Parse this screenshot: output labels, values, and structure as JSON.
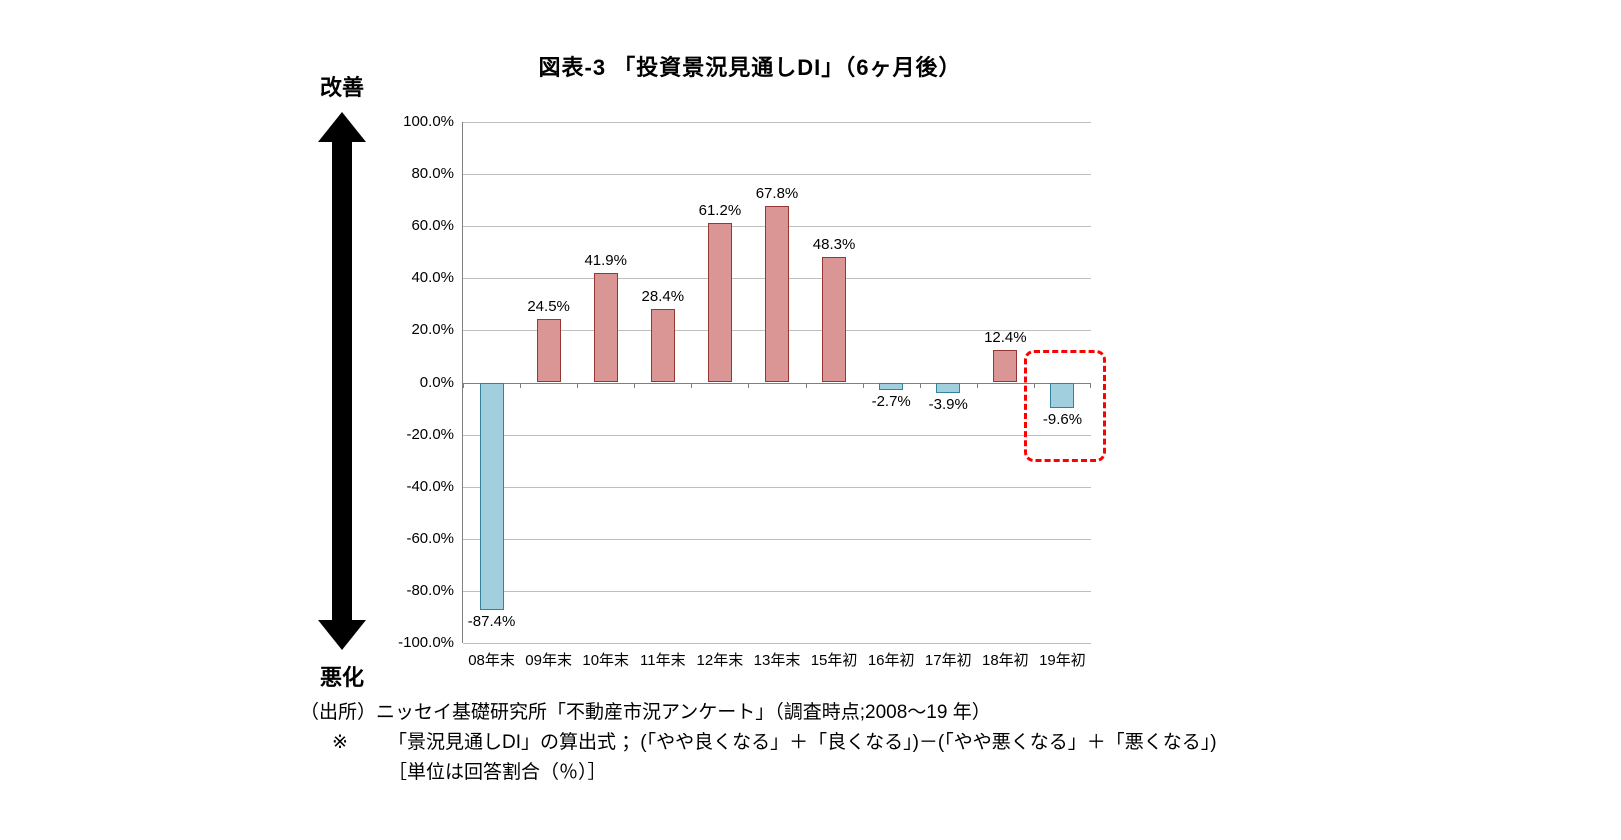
{
  "title": "図表-3 「投資景況見通しDI」（6ヶ月後）",
  "annotations": {
    "top": "改善",
    "bottom": "悪化"
  },
  "chart_data": {
    "type": "bar",
    "title": "図表-3 「投資景況見通しDI」（6ヶ月後）",
    "categories": [
      "08年末",
      "09年末",
      "10年末",
      "11年末",
      "12年末",
      "13年末",
      "15年初",
      "16年初",
      "17年初",
      "18年初",
      "19年初"
    ],
    "values": [
      -87.4,
      24.5,
      41.9,
      28.4,
      61.2,
      67.8,
      48.3,
      -2.7,
      -3.9,
      12.4,
      -9.6
    ],
    "labels": [
      "-87.4%",
      "24.5%",
      "41.9%",
      "28.4%",
      "61.2%",
      "67.8%",
      "48.3%",
      "-2.7%",
      "-3.9%",
      "12.4%",
      "-9.6%"
    ],
    "ylim": [
      -100,
      100
    ],
    "ytick_step": 20,
    "ytick_labels": [
      "100.0%",
      "80.0%",
      "60.0%",
      "40.0%",
      "20.0%",
      "0.0%",
      "-20.0%",
      "-40.0%",
      "-60.0%",
      "-80.0%",
      "-100.0%"
    ],
    "grid": true,
    "legend": "none",
    "highlight_category": "19年初",
    "colors": {
      "positive_fill": "#D99694",
      "positive_border": "#953735",
      "negative_fill": "#A2CFDE",
      "negative_border": "#31849B",
      "highlight_box": "#FF0000",
      "grid": "#BFBFBF"
    }
  },
  "footer": {
    "source": "（出所）ニッセイ基礎研究所「不動産市況アンケート」（調査時点;2008～19 年）",
    "note_marker": "※",
    "note": "「景況見通しDI」の算出式 ；(「やや良くなる」＋「良くなる」)－(「やや悪くなる」＋「悪くなる」)",
    "unit": "［単位は回答割合（％）］"
  }
}
